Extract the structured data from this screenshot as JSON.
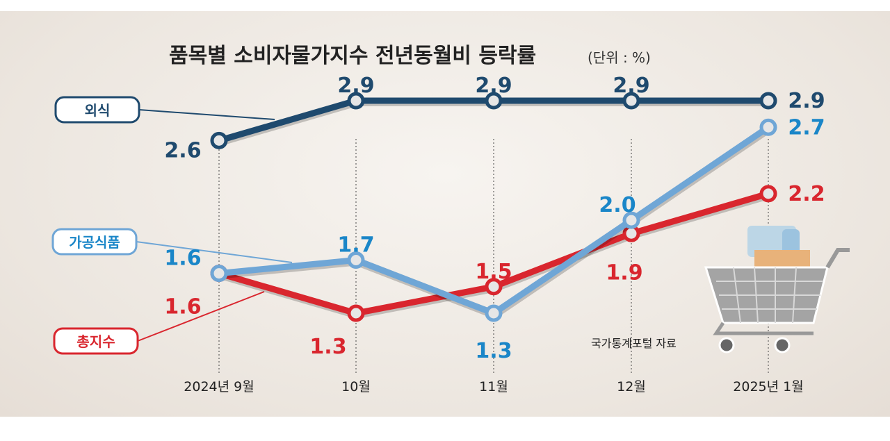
{
  "chart_data": {
    "type": "line",
    "title": "품목별 소비자물가지수 전년동월비 등락률",
    "unit": "(단위 : %)",
    "categories": [
      "2024년 9월",
      "10월",
      "11월",
      "12월",
      "2025년 1월"
    ],
    "series": [
      {
        "name": "외식",
        "values": [
          2.6,
          2.9,
          2.9,
          2.9,
          2.9
        ],
        "color": "#1f4a6e"
      },
      {
        "name": "가공식품",
        "values": [
          1.6,
          1.7,
          1.3,
          2.0,
          2.7
        ],
        "color": "#6fa6d6",
        "label_color": "#1a86c8"
      },
      {
        "name": "총지수",
        "values": [
          1.6,
          1.3,
          1.5,
          1.9,
          2.2
        ],
        "color": "#d9262e"
      }
    ],
    "ylim": [
      1.3,
      2.9
    ],
    "grid": false,
    "source": "국가통계포털 자료"
  }
}
